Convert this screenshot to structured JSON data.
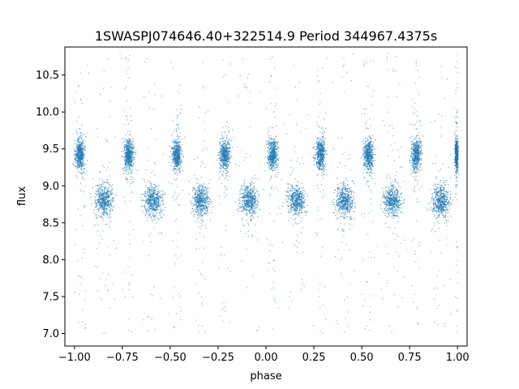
{
  "chart_data": {
    "type": "scatter",
    "title": "1SWASPJ074646.40+322514.9 Period 344967.4375s",
    "xlabel": "phase",
    "ylabel": "flux",
    "xlim": [
      -1.05,
      1.05
    ],
    "ylim": [
      6.83,
      10.88
    ],
    "grid": false,
    "point_color": "#1f77b4",
    "x_ticks": [
      {
        "value": -1.0,
        "label": "−1.00"
      },
      {
        "value": -0.75,
        "label": "−0.75"
      },
      {
        "value": -0.5,
        "label": "−0.50"
      },
      {
        "value": -0.25,
        "label": "−0.25"
      },
      {
        "value": 0.0,
        "label": "0.00"
      },
      {
        "value": 0.25,
        "label": "0.25"
      },
      {
        "value": 0.5,
        "label": "0.50"
      },
      {
        "value": 0.75,
        "label": "0.75"
      },
      {
        "value": 1.0,
        "label": "1.00"
      }
    ],
    "y_ticks": [
      {
        "value": 7.0,
        "label": "7.0"
      },
      {
        "value": 7.5,
        "label": "7.5"
      },
      {
        "value": 8.0,
        "label": "8.0"
      },
      {
        "value": 8.5,
        "label": "8.5"
      },
      {
        "value": 9.0,
        "label": "9.0"
      },
      {
        "value": 9.5,
        "label": "9.5"
      },
      {
        "value": 10.0,
        "label": "10.0"
      },
      {
        "value": 10.5,
        "label": "10.5"
      }
    ],
    "series": [
      {
        "clusters": [
          {
            "x": -0.97,
            "y": 9.42,
            "sx": 0.018,
            "sy": 0.14
          },
          {
            "x": -0.845,
            "y": 8.8,
            "sx": 0.032,
            "sy": 0.14
          },
          {
            "x": -0.715,
            "y": 9.42,
            "sx": 0.018,
            "sy": 0.14
          },
          {
            "x": -0.59,
            "y": 8.8,
            "sx": 0.032,
            "sy": 0.14
          },
          {
            "x": -0.465,
            "y": 9.42,
            "sx": 0.018,
            "sy": 0.14
          },
          {
            "x": -0.34,
            "y": 8.8,
            "sx": 0.032,
            "sy": 0.14
          },
          {
            "x": -0.215,
            "y": 9.42,
            "sx": 0.018,
            "sy": 0.14
          },
          {
            "x": -0.09,
            "y": 8.8,
            "sx": 0.032,
            "sy": 0.14
          },
          {
            "x": 0.035,
            "y": 9.42,
            "sx": 0.018,
            "sy": 0.14
          },
          {
            "x": 0.16,
            "y": 8.8,
            "sx": 0.032,
            "sy": 0.14
          },
          {
            "x": 0.285,
            "y": 9.42,
            "sx": 0.018,
            "sy": 0.14
          },
          {
            "x": 0.41,
            "y": 8.8,
            "sx": 0.032,
            "sy": 0.14
          },
          {
            "x": 0.535,
            "y": 9.42,
            "sx": 0.018,
            "sy": 0.14
          },
          {
            "x": 0.66,
            "y": 8.8,
            "sx": 0.032,
            "sy": 0.14
          },
          {
            "x": 0.785,
            "y": 9.42,
            "sx": 0.018,
            "sy": 0.14
          },
          {
            "x": 0.91,
            "y": 8.8,
            "sx": 0.032,
            "sy": 0.14
          },
          {
            "x": 0.995,
            "y": 9.42,
            "sx": 0.006,
            "sy": 0.14
          }
        ],
        "scatter_extent": {
          "x": [
            -1.0,
            1.0
          ],
          "y": [
            7.0,
            10.8
          ]
        }
      }
    ]
  }
}
